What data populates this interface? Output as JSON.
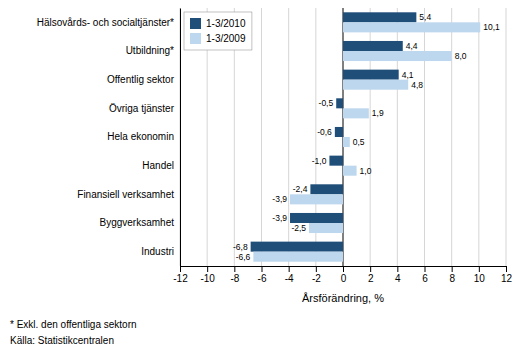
{
  "chart_data": {
    "type": "bar",
    "orientation": "horizontal",
    "categories": [
      "Industri",
      "Byggverksamhet",
      "Finansiell verksamhet",
      "Handel",
      "Hela ekonomin",
      "Övriga tjänster",
      "Offentlig sektor",
      "Utbildning*",
      "Hälsovårds- och socialtjänster*"
    ],
    "series": [
      {
        "name": "1-3/2010",
        "color": "#1F4E79",
        "values": [
          -6.8,
          -3.9,
          -2.4,
          -1.0,
          -0.6,
          -0.5,
          4.1,
          4.4,
          5.4
        ],
        "value_labels": [
          "-6,8",
          "-3,9",
          "-2,4",
          "-1,0",
          "-0,6",
          "-0,5",
          "4,1",
          "4,4",
          "5,4"
        ]
      },
      {
        "name": "1-3/2009",
        "color": "#BDD7EE",
        "values": [
          -6.6,
          -2.5,
          -3.9,
          1.0,
          0.5,
          1.9,
          4.8,
          8.0,
          10.1
        ],
        "value_labels": [
          "-6,6",
          "-2,5",
          "-3,9",
          "1,0",
          "0,5",
          "1,9",
          "4,8",
          "8,0",
          "10,1"
        ]
      }
    ],
    "xlabel": "Årsförändring, %",
    "xlim": [
      -12,
      12
    ],
    "xticks": [
      -12,
      -10,
      -8,
      -6,
      -4,
      -2,
      0,
      2,
      4,
      6,
      8,
      10,
      12
    ],
    "grid": true,
    "legend": "upper-left",
    "data_labels": true,
    "annotations": [
      "* Exkl. den offentliga sektorn",
      "Källa: Statistikcentralen"
    ]
  }
}
